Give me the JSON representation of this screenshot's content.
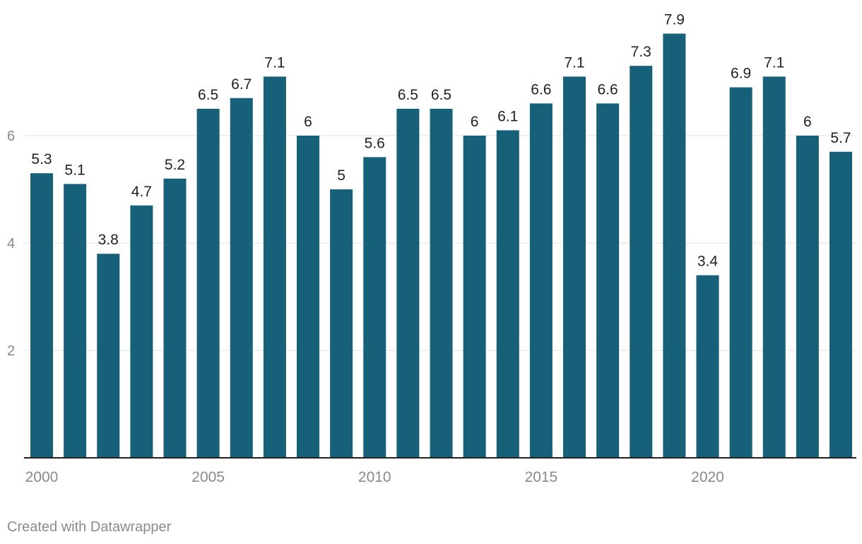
{
  "chart_data": {
    "type": "bar",
    "x": [
      2000,
      2001,
      2002,
      2003,
      2004,
      2005,
      2006,
      2007,
      2008,
      2009,
      2010,
      2011,
      2012,
      2013,
      2014,
      2015,
      2016,
      2017,
      2018,
      2019,
      2020,
      2021,
      2022,
      2023,
      2024
    ],
    "values": [
      5.3,
      5.1,
      3.8,
      4.7,
      5.2,
      6.5,
      6.7,
      7.1,
      6,
      5,
      5.6,
      6.5,
      6.5,
      6,
      6.1,
      6.6,
      7.1,
      6.6,
      7.3,
      7.9,
      3.4,
      6.9,
      7.1,
      6,
      5.7
    ],
    "value_labels": [
      "5.3",
      "5.1",
      "3.8",
      "4.7",
      "5.2",
      "6.5",
      "6.7",
      "7.1",
      "6",
      "5",
      "5.6",
      "6.5",
      "6.5",
      "6",
      "6.1",
      "6.6",
      "7.1",
      "6.6",
      "7.3",
      "7.9",
      "3.4",
      "6.9",
      "7.1",
      "6",
      "5.7"
    ],
    "x_ticks": [
      "2000",
      "2005",
      "2010",
      "2015",
      "2020"
    ],
    "y_ticks": [
      "2",
      "4",
      "6"
    ],
    "ylim": [
      0,
      8
    ],
    "grid": true,
    "bar_color": "#17607a",
    "title": "",
    "xlabel": "",
    "ylabel": ""
  },
  "footer": {
    "credit": "Created with Datawrapper"
  }
}
